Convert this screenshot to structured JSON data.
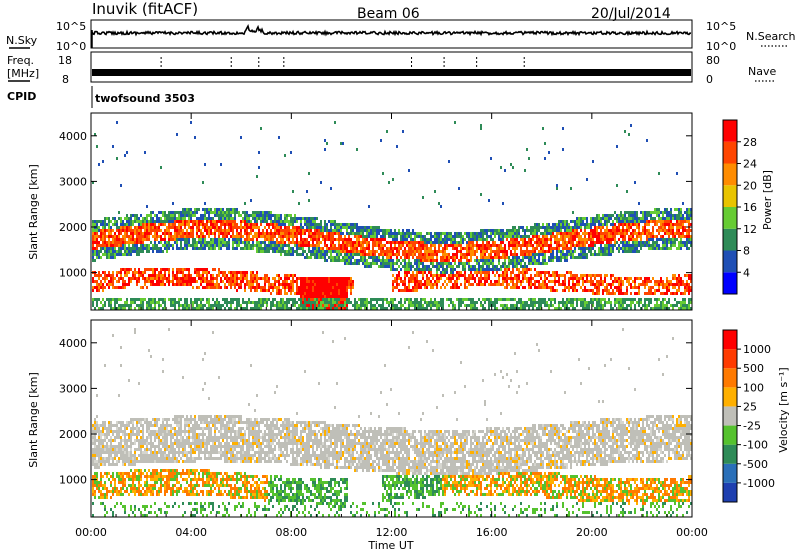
{
  "header": {
    "station": "Inuvik (fitACF)",
    "beam": "Beam 06",
    "date": "20/Jul/2014"
  },
  "status_panels": {
    "nsky": {
      "label": "N.Sky",
      "ticks": [
        "10^5",
        "10^0"
      ]
    },
    "nsearch": {
      "label": "N.Search",
      "ticks": [
        "10^5",
        "10^0"
      ]
    },
    "freq": {
      "label_line1": "Freq.",
      "label_line2": "[MHz]",
      "ticks": [
        "18",
        "8"
      ]
    },
    "nave": {
      "label": "Nave",
      "ticks": [
        "80",
        "0"
      ]
    },
    "cpid": {
      "label": "CPID",
      "value": "twofsound 3503"
    }
  },
  "chart_data": [
    {
      "type": "heatmap",
      "name": "power",
      "ylabel": "Slant Range [km]",
      "ylim": [
        180,
        4500
      ],
      "yticks": [
        "4000",
        "3000",
        "2000",
        "1000"
      ],
      "ytick_values": [
        4000,
        3000,
        2000,
        1000
      ],
      "colorbar_label": "Power [dB]",
      "colorbar_ticks": [
        "28",
        "24",
        "20",
        "16",
        "12",
        "8",
        "4"
      ],
      "colorbar_colors": [
        "#0000ff",
        "#1f4fb5",
        "#2e8b57",
        "#66cc33",
        "#e8c400",
        "#ff8c00",
        "#ff4500",
        "#ff0000"
      ]
    },
    {
      "type": "heatmap",
      "name": "velocity",
      "ylabel": "Slant Range [km]",
      "ylim": [
        180,
        4500
      ],
      "yticks": [
        "4000",
        "3000",
        "2000",
        "1000"
      ],
      "ytick_values": [
        4000,
        3000,
        2000,
        1000
      ],
      "colorbar_label": "Velocity [m s⁻¹]",
      "colorbar_ticks": [
        "1000",
        "500",
        "100",
        "25",
        "-25",
        "-100",
        "-500",
        "-1000"
      ],
      "colorbar_colors": [
        "#1e3fb0",
        "#2a6fb8",
        "#2e8b57",
        "#55c22e",
        "#bfbfb8",
        "#ffb000",
        "#ff7a00",
        "#ff3b00",
        "#ff0000"
      ]
    }
  ],
  "xaxis": {
    "label": "Time UT",
    "ticks": [
      "00:00",
      "04:00",
      "08:00",
      "12:00",
      "16:00",
      "20:00",
      "00:00"
    ],
    "tick_hours": [
      0,
      4,
      8,
      12,
      16,
      20,
      24
    ]
  },
  "colors": {
    "grey": "#bdbdb5",
    "green": "#2e8b57",
    "orange": "#ff8c00",
    "red": "#ff0000",
    "blue": "#1f4fb5"
  }
}
